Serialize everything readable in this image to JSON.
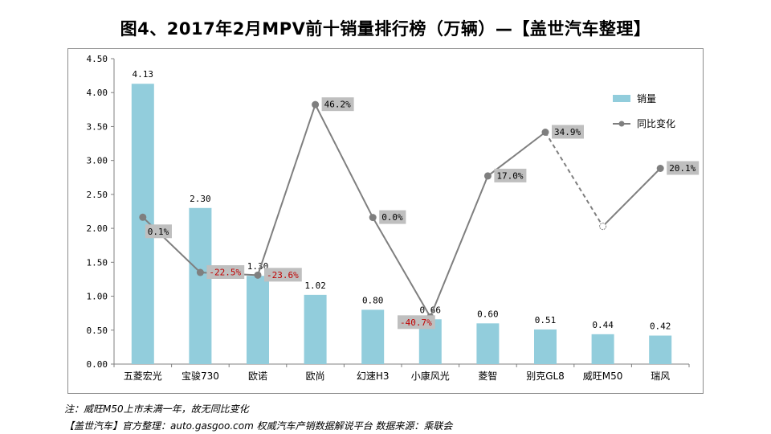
{
  "title": "图4、2017年2月MPV前十销量排行榜（万辆）—【盖世汽车整理】",
  "footnote": "注：威旺M50上市未满一年，故无同比变化",
  "source": "【盖世汽车】官方整理：auto.gasgoo.com 权威汽车产销数据解说平台 数据来源：乘联会",
  "colors": {
    "bar": "#92cddc",
    "line": "#7f7f7f",
    "label_bg": "#bfbfbf",
    "negative": "#c00000"
  },
  "chart_data": {
    "type": "bar",
    "title": "图4、2017年2月MPV前十销量排行榜（万辆）—【盖世汽车整理】",
    "categories": [
      "五菱宏光",
      "宝骏730",
      "欧诺",
      "欧尚",
      "幻速H3",
      "小康风光",
      "菱智",
      "别克GL8",
      "威旺M50",
      "瑞风"
    ],
    "ylim": [
      0,
      4.5
    ],
    "yticks": [
      "0.00",
      "0.50",
      "1.00",
      "1.50",
      "2.00",
      "2.50",
      "3.00",
      "3.50",
      "4.00",
      "4.50"
    ],
    "legend_position": "right",
    "series": [
      {
        "name": "销量",
        "type": "bar",
        "values": [
          4.13,
          2.3,
          1.3,
          1.02,
          0.8,
          0.66,
          0.6,
          0.51,
          0.44,
          0.42
        ],
        "labels": [
          "4.13",
          "2.30",
          "1.30",
          "1.02",
          "0.80",
          "0.66",
          "0.60",
          "0.51",
          "0.44",
          "0.42"
        ]
      },
      {
        "name": "同比变化",
        "type": "line",
        "values": [
          0.1,
          -22.5,
          -23.6,
          46.2,
          0.0,
          -40.7,
          17.0,
          34.9,
          null,
          20.1
        ],
        "labels": [
          "0.1%",
          "-22.5%",
          "-23.6%",
          "46.2%",
          "0.0%",
          "-40.7%",
          "17.0%",
          "34.9%",
          "",
          "20.1%"
        ],
        "secondary_axis": "hidden"
      }
    ]
  }
}
